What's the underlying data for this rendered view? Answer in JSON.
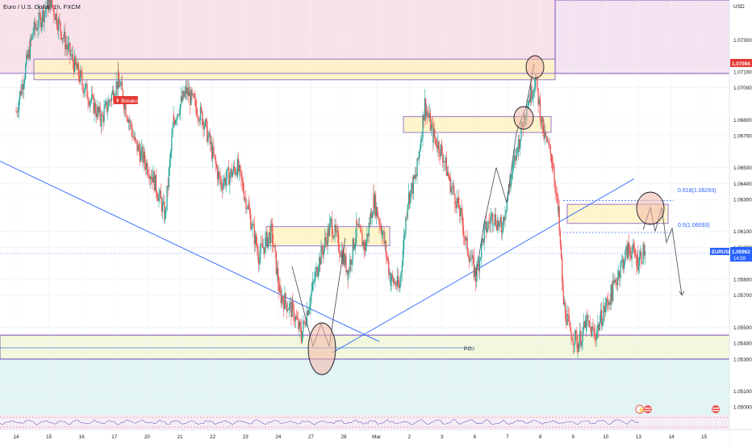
{
  "symbol_title": "Euro / U.S. Dollar, 1h, FXCM",
  "currency": "USD",
  "colors": {
    "bull": "#26a69a",
    "bear": "#ef5350",
    "trendline": "#2962ff",
    "zone_fill": "#fff3c4",
    "zone_stroke": "#7e57c2",
    "upper_band": "#f8e1ea",
    "lower_band": "#e0f5f5",
    "support_band": "#f1f8dc",
    "price_tag": "#2962ff",
    "resistance_tag": "#e53935"
  },
  "chart_data": {
    "type": "candlestick",
    "xlabel": "",
    "ylabel": "",
    "ylim": [
      1.0495,
      1.0755
    ],
    "y_ticks": [
      "1.07300",
      "1.07100",
      "1.07000",
      "1.06800",
      "1.06700",
      "1.06500",
      "1.06400",
      "1.06300",
      "1.06100",
      "1.06000",
      "1.05800",
      "1.05700",
      "1.05500",
      "1.05400",
      "1.05300",
      "1.05100",
      "1.05000"
    ],
    "x_ticks": [
      "14",
      "15",
      "16",
      "17",
      "20",
      "21",
      "22",
      "23",
      "24",
      "27",
      "28",
      "Mar",
      "2",
      "3",
      "6",
      "7",
      "8",
      "9",
      "10",
      "13",
      "14",
      "15"
    ],
    "price_path": [
      [
        0,
        1.0685
      ],
      [
        2,
        1.0735
      ],
      [
        4,
        1.0755
      ],
      [
        6,
        1.0725
      ],
      [
        8,
        1.07
      ],
      [
        10,
        1.068
      ],
      [
        12,
        1.0705
      ],
      [
        14,
        1.0665
      ],
      [
        16,
        1.0645
      ],
      [
        17.5,
        1.062
      ],
      [
        18.5,
        1.068
      ],
      [
        20,
        1.0698
      ],
      [
        22,
        1.068
      ],
      [
        24,
        1.064
      ],
      [
        26,
        1.065
      ],
      [
        27,
        1.063
      ],
      [
        28.5,
        1.0595
      ],
      [
        30,
        1.061
      ],
      [
        31,
        1.057
      ],
      [
        32.5,
        1.056
      ],
      [
        33.5,
        1.0545
      ],
      [
        35.5,
        1.059
      ],
      [
        37,
        1.0615
      ],
      [
        39,
        1.0585
      ],
      [
        40,
        1.0612
      ],
      [
        41,
        1.06
      ],
      [
        42,
        1.063
      ],
      [
        43,
        1.061
      ],
      [
        44,
        1.058
      ],
      [
        45,
        1.0575
      ],
      [
        46,
        1.063
      ],
      [
        47,
        1.0645
      ],
      [
        48,
        1.069
      ],
      [
        49,
        1.067
      ],
      [
        50,
        1.066
      ],
      [
        51,
        1.064
      ],
      [
        52,
        1.0625
      ],
      [
        53,
        1.06
      ],
      [
        54,
        1.0582
      ],
      [
        55,
        1.061
      ],
      [
        56,
        1.062
      ],
      [
        57,
        1.0612
      ],
      [
        58,
        1.064
      ],
      [
        59,
        1.0665
      ],
      [
        60,
        1.069
      ],
      [
        61,
        1.0705
      ],
      [
        62,
        1.067
      ],
      [
        63,
        1.0655
      ],
      [
        63.7,
        1.062
      ],
      [
        64.3,
        1.0565
      ],
      [
        65,
        1.0548
      ],
      [
        66,
        1.054
      ],
      [
        67,
        1.0552
      ],
      [
        68,
        1.0545
      ],
      [
        69,
        1.056
      ],
      [
        70,
        1.0572
      ],
      [
        71,
        1.0588
      ],
      [
        72,
        1.06
      ],
      [
        73,
        1.0592
      ],
      [
        74,
        1.0599
      ]
    ],
    "annotations": [
      {
        "label": "Breakout",
        "value": 1.0688
      },
      {
        "label": "P.O.I",
        "value": 1.0537
      },
      {
        "label": "0.618(1.06293)",
        "value": 1.06293
      },
      {
        "label": "0.5(1.06093)",
        "value": 1.06093
      }
    ],
    "resistance_price": "1.07094",
    "current_price": "1.05962",
    "countdown": "14:59",
    "series": [
      {
        "name": "EURUSD",
        "last": "1.05962"
      }
    ]
  }
}
